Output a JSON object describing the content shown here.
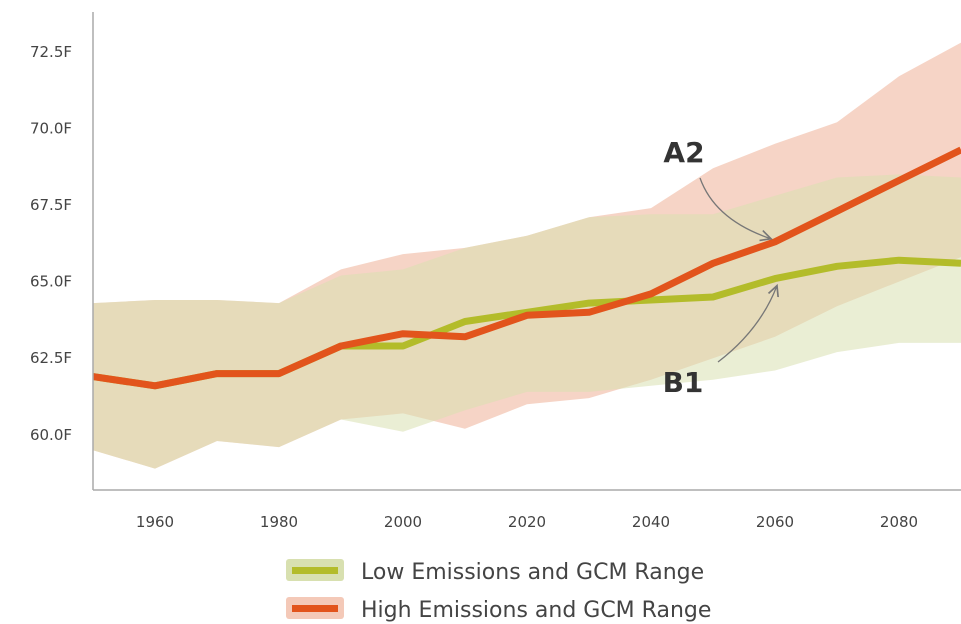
{
  "chart_data": {
    "type": "line",
    "title": "",
    "xlabel": "",
    "ylabel": "",
    "xlim": [
      1950,
      2090
    ],
    "ylim": [
      58.2,
      73.8
    ],
    "x_ticks": [
      1960,
      1980,
      2000,
      2020,
      2040,
      2060,
      2080
    ],
    "x_tick_labels": [
      "1960",
      "1980",
      "2000",
      "2020",
      "2040",
      "2060",
      "2080"
    ],
    "y_ticks": [
      60.0,
      62.5,
      65.0,
      67.5,
      70.0,
      72.5
    ],
    "y_tick_labels": [
      "60.0F",
      "62.5F",
      "65.0F",
      "67.5F",
      "70.0F",
      "72.5F"
    ],
    "grid": false,
    "legend_position": "bottom-center",
    "x": [
      1950,
      1960,
      1970,
      1980,
      1990,
      2000,
      2010,
      2020,
      2030,
      2040,
      2050,
      2060,
      2070,
      2080,
      2090
    ],
    "series": [
      {
        "name": "Low Emissions and GCM Range",
        "color": "#b3bc2a",
        "band_color": "#d8e0b0",
        "values": [
          61.9,
          61.6,
          62.0,
          62.0,
          62.9,
          62.9,
          63.7,
          64.0,
          64.3,
          64.4,
          64.5,
          65.1,
          65.5,
          65.7,
          65.6
        ],
        "lower": [
          59.5,
          58.9,
          59.8,
          59.6,
          60.5,
          60.1,
          60.8,
          61.4,
          61.4,
          61.6,
          61.8,
          62.1,
          62.7,
          63.0,
          63.0
        ],
        "upper": [
          64.3,
          64.4,
          64.4,
          64.3,
          65.2,
          65.4,
          66.1,
          66.5,
          67.1,
          67.2,
          67.2,
          67.8,
          68.4,
          68.5,
          68.4
        ]
      },
      {
        "name": "High Emissions and GCM Range",
        "color": "#e2541c",
        "band_color": "#f4c9b8",
        "values": [
          61.9,
          61.6,
          62.0,
          62.0,
          62.9,
          63.3,
          63.2,
          63.9,
          64.0,
          64.6,
          65.6,
          66.3,
          67.3,
          68.3,
          69.3
        ],
        "lower": [
          59.5,
          58.9,
          59.8,
          59.6,
          60.5,
          60.7,
          60.2,
          61.0,
          61.2,
          61.8,
          62.5,
          63.2,
          64.2,
          65.0,
          65.8
        ],
        "upper": [
          64.3,
          64.4,
          64.4,
          64.3,
          65.4,
          65.9,
          66.1,
          66.5,
          67.1,
          67.4,
          68.7,
          69.5,
          70.2,
          71.7,
          72.8
        ]
      }
    ],
    "annotations": [
      {
        "text": "A2",
        "x": 2060,
        "y": 66.3
      },
      {
        "text": "B1",
        "x": 2060,
        "y": 65.1
      }
    ]
  }
}
